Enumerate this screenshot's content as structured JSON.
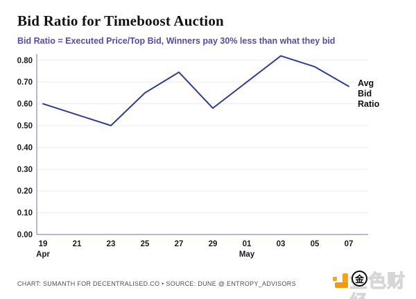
{
  "title": "Bid Ratio for Timeboost Auction",
  "subtitle": "Bid Ratio = Executed Price/Top Bid, Winners pay 30% less than what they bid",
  "series_end_label": "Avg\nBid\nRatio",
  "footer": {
    "credit": "CHART: SUMANTH FOR DECENTRALISED.CO • SOURCE: DUNE @ ENTROPY_ADVISORS"
  },
  "watermark": {
    "brand_text": "金色财经",
    "emblem_char": "金",
    "orange": "#F6A31C"
  },
  "colors": {
    "line": "#2E3D8F",
    "axis": "#A59EC9",
    "grid": "#ECEAF2",
    "tick_label": "#1A1A1A",
    "subtitle": "#5B4A9E",
    "footer_text": "#4D4D4D"
  },
  "chart_data": {
    "type": "line",
    "title": "Bid Ratio for Timeboost Auction",
    "xlabel": "",
    "ylabel": "",
    "x": [
      "19",
      "21",
      "23",
      "25",
      "27",
      "29",
      "01",
      "03",
      "05",
      "07"
    ],
    "x_sub_labels": [
      {
        "index": 0,
        "label": "Apr"
      },
      {
        "index": 6,
        "label": "May"
      }
    ],
    "series": [
      {
        "name": "Avg Bid Ratio",
        "values": [
          0.6,
          0.55,
          0.5,
          0.65,
          0.745,
          0.58,
          0.7,
          0.82,
          0.77,
          0.68
        ]
      }
    ],
    "y_ticks": [
      0.0,
      0.1,
      0.2,
      0.3,
      0.4,
      0.5,
      0.6,
      0.7,
      0.8
    ],
    "y_tick_labels": [
      "0.00",
      "0.10",
      "0.20",
      "0.30",
      "0.40",
      "0.50",
      "0.60",
      "0.70",
      "0.80"
    ],
    "ylim": [
      0.0,
      0.8
    ],
    "grid": "horizontal",
    "legend_position": "right-end-label"
  }
}
